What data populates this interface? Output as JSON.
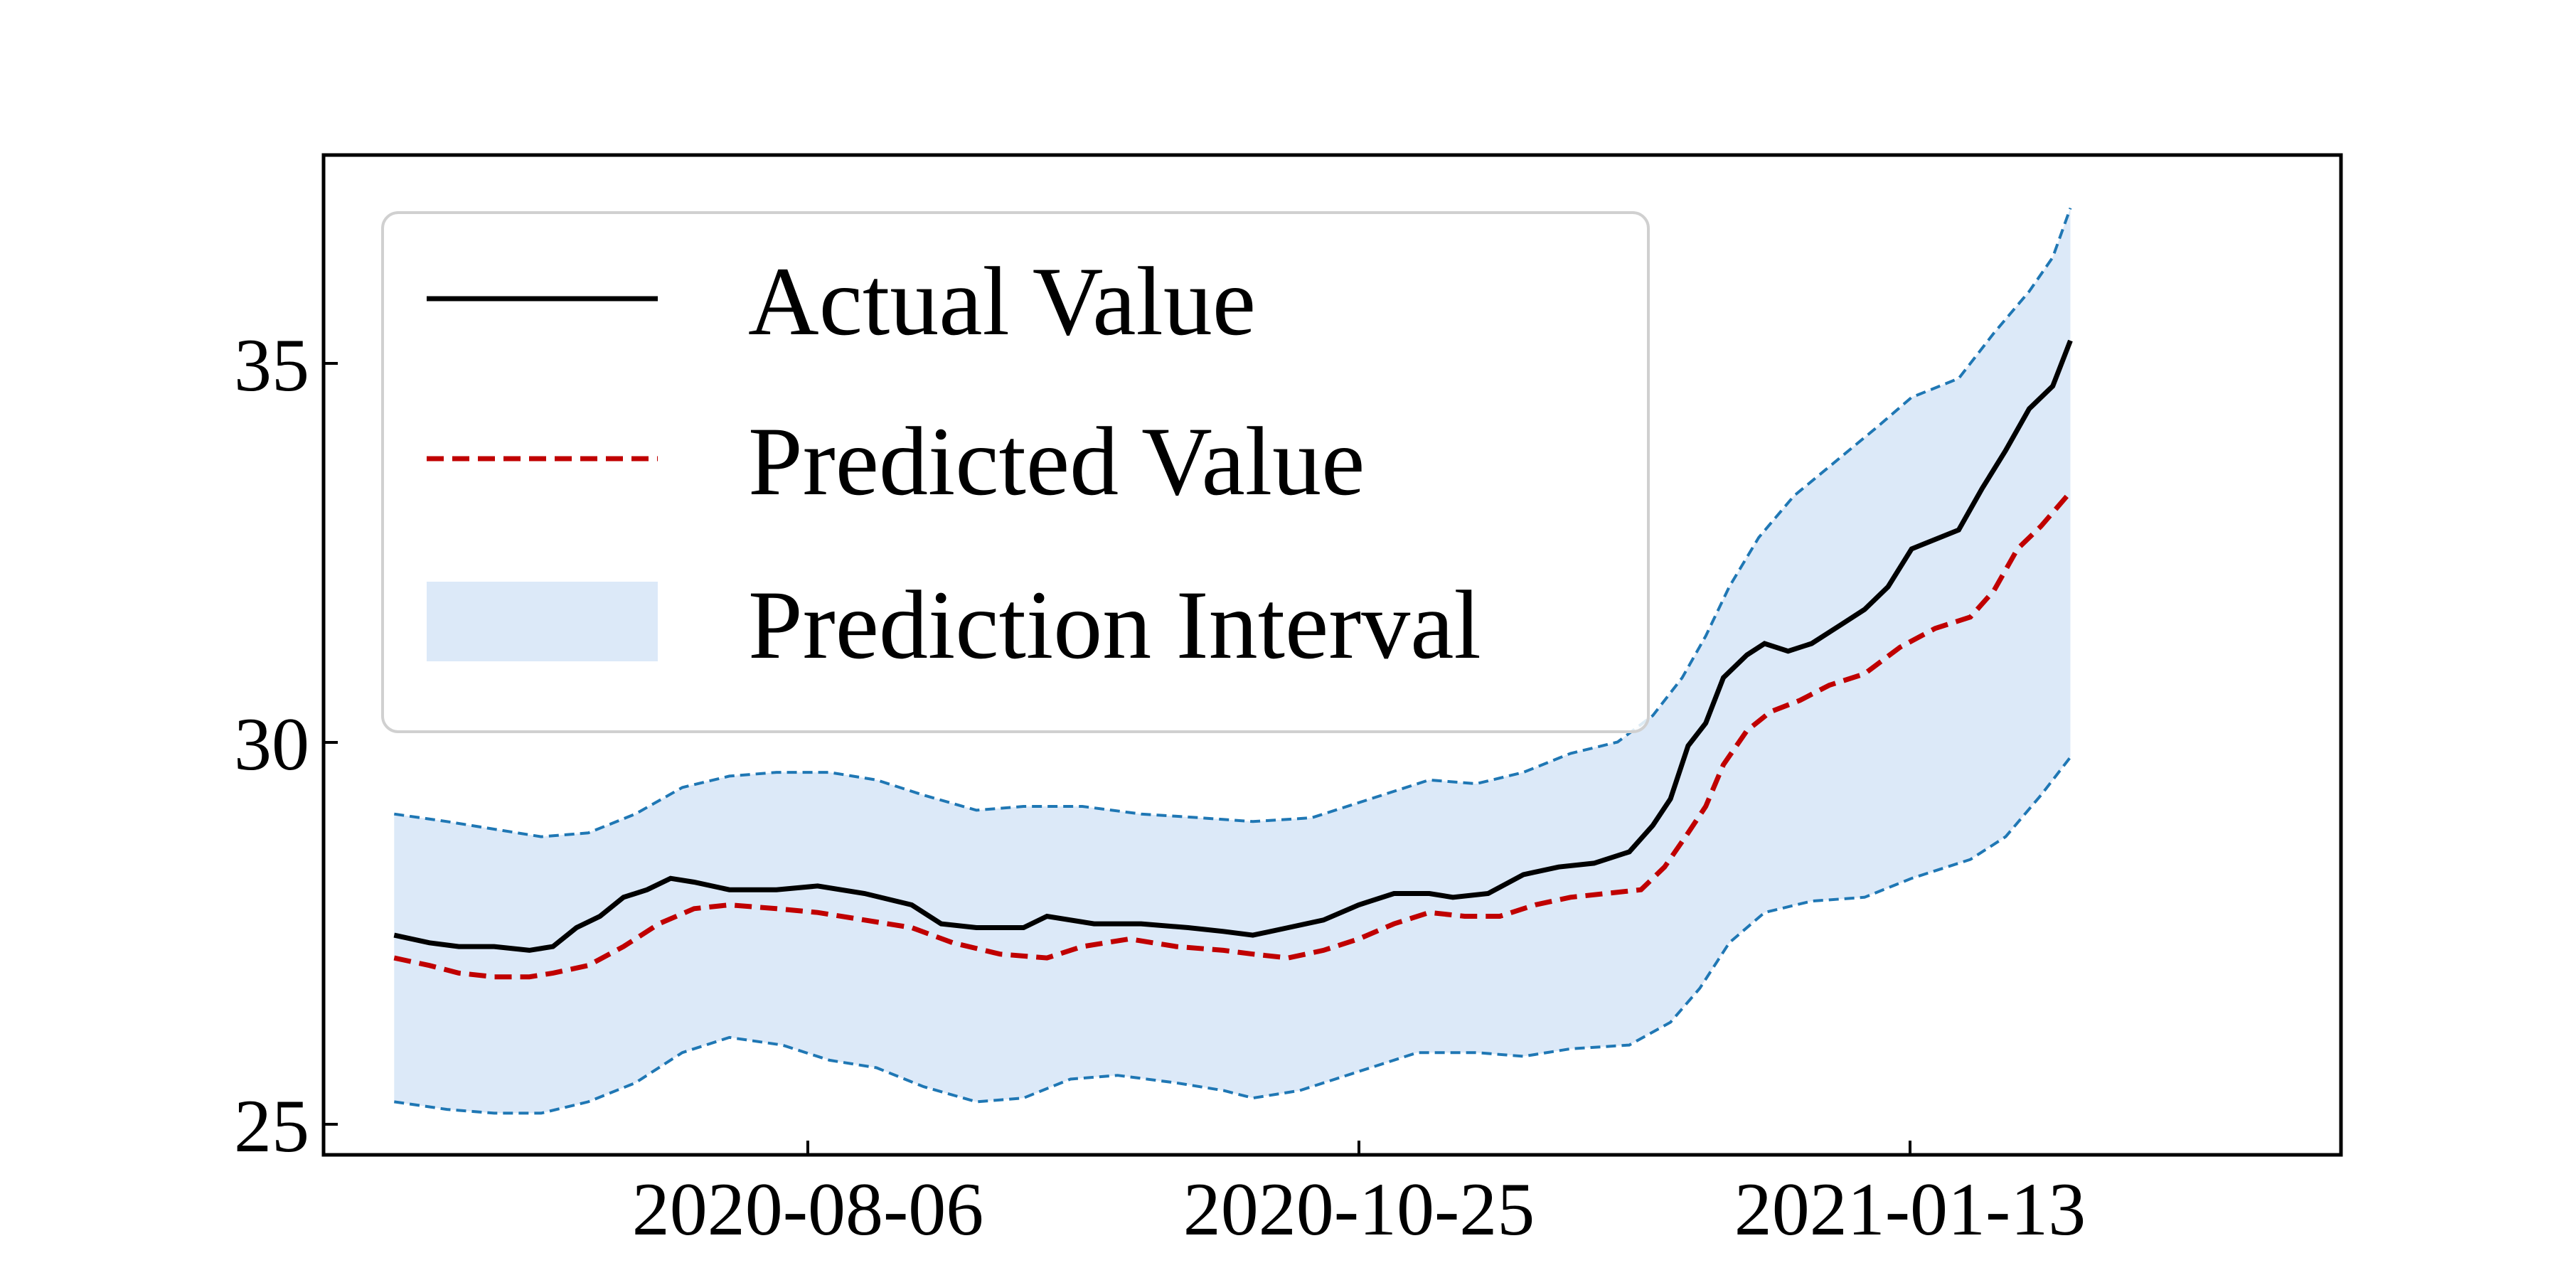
{
  "chart_data": {
    "type": "line",
    "title": "",
    "xlabel": "",
    "ylabel": "",
    "x_tick_labels": [
      "2020-08-06",
      "2020-10-25",
      "2021-01-13"
    ],
    "y_ticks": [
      25,
      30,
      35
    ],
    "xlim": [
      "2020-05-20",
      "2021-04-28"
    ],
    "ylim": [
      24.6,
      37.8
    ],
    "grid": false,
    "legend_position": "top-left",
    "series": [
      {
        "name": "Actual Value",
        "style": "solid",
        "color": "#000000",
        "points": [
          [
            "2020-06-01",
            27.5
          ],
          [
            "2020-06-07",
            27.4
          ],
          [
            "2020-06-12",
            27.35
          ],
          [
            "2020-06-18",
            27.35
          ],
          [
            "2020-06-24",
            27.3
          ],
          [
            "2020-06-28",
            27.35
          ],
          [
            "2020-07-02",
            27.6
          ],
          [
            "2020-07-06",
            27.75
          ],
          [
            "2020-07-10",
            28.0
          ],
          [
            "2020-07-14",
            28.1
          ],
          [
            "2020-07-18",
            28.25
          ],
          [
            "2020-07-22",
            28.2
          ],
          [
            "2020-07-28",
            28.1
          ],
          [
            "2020-08-05",
            28.1
          ],
          [
            "2020-08-12",
            28.15
          ],
          [
            "2020-08-20",
            28.05
          ],
          [
            "2020-08-28",
            27.9
          ],
          [
            "2020-09-02",
            27.65
          ],
          [
            "2020-09-08",
            27.6
          ],
          [
            "2020-09-16",
            27.6
          ],
          [
            "2020-09-20",
            27.75
          ],
          [
            "2020-09-28",
            27.65
          ],
          [
            "2020-10-06",
            27.65
          ],
          [
            "2020-10-14",
            27.6
          ],
          [
            "2020-10-20",
            27.55
          ],
          [
            "2020-10-25",
            27.5
          ],
          [
            "2020-10-31",
            27.6
          ],
          [
            "2020-11-06",
            27.7
          ],
          [
            "2020-11-12",
            27.9
          ],
          [
            "2020-11-18",
            28.05
          ],
          [
            "2020-11-24",
            28.05
          ],
          [
            "2020-11-28",
            28.0
          ],
          [
            "2020-12-04",
            28.05
          ],
          [
            "2020-12-10",
            28.3
          ],
          [
            "2020-12-16",
            28.4
          ],
          [
            "2020-12-22",
            28.45
          ],
          [
            "2020-12-28",
            28.6
          ],
          [
            "2021-01-01",
            28.95
          ],
          [
            "2021-01-04",
            29.3
          ],
          [
            "2021-01-07",
            30.0
          ],
          [
            "2021-01-10",
            30.3
          ],
          [
            "2021-01-13",
            30.9
          ],
          [
            "2021-01-17",
            31.2
          ],
          [
            "2021-01-20",
            31.35
          ],
          [
            "2021-01-24",
            31.25
          ],
          [
            "2021-01-28",
            31.35
          ],
          [
            "2021-02-02",
            31.6
          ],
          [
            "2021-02-06",
            31.8
          ],
          [
            "2021-02-10",
            32.1
          ],
          [
            "2021-02-14",
            32.6
          ],
          [
            "2021-02-22",
            32.85
          ],
          [
            "2021-02-26",
            33.4
          ],
          [
            "2021-03-02",
            33.9
          ],
          [
            "2021-03-06",
            34.45
          ],
          [
            "2021-03-10",
            34.75
          ],
          [
            "2021-03-13",
            35.35
          ]
        ]
      },
      {
        "name": "Predicted Value",
        "style": "dashed",
        "color": "#c00000",
        "points": [
          [
            "2020-06-01",
            27.2
          ],
          [
            "2020-06-07",
            27.1
          ],
          [
            "2020-06-12",
            27.0
          ],
          [
            "2020-06-18",
            26.95
          ],
          [
            "2020-06-24",
            26.95
          ],
          [
            "2020-06-28",
            27.0
          ],
          [
            "2020-07-04",
            27.1
          ],
          [
            "2020-07-10",
            27.35
          ],
          [
            "2020-07-16",
            27.65
          ],
          [
            "2020-07-22",
            27.85
          ],
          [
            "2020-07-28",
            27.9
          ],
          [
            "2020-08-05",
            27.85
          ],
          [
            "2020-08-12",
            27.8
          ],
          [
            "2020-08-20",
            27.7
          ],
          [
            "2020-08-28",
            27.6
          ],
          [
            "2020-09-04",
            27.4
          ],
          [
            "2020-09-12",
            27.25
          ],
          [
            "2020-09-20",
            27.2
          ],
          [
            "2020-09-26",
            27.35
          ],
          [
            "2020-10-04",
            27.45
          ],
          [
            "2020-10-12",
            27.35
          ],
          [
            "2020-10-20",
            27.3
          ],
          [
            "2020-10-25",
            27.25
          ],
          [
            "2020-10-31",
            27.2
          ],
          [
            "2020-11-06",
            27.3
          ],
          [
            "2020-11-12",
            27.45
          ],
          [
            "2020-11-18",
            27.65
          ],
          [
            "2020-11-24",
            27.8
          ],
          [
            "2020-11-30",
            27.75
          ],
          [
            "2020-12-06",
            27.75
          ],
          [
            "2020-12-12",
            27.9
          ],
          [
            "2020-12-18",
            28.0
          ],
          [
            "2020-12-24",
            28.05
          ],
          [
            "2020-12-30",
            28.1
          ],
          [
            "2021-01-03",
            28.4
          ],
          [
            "2021-01-07",
            28.85
          ],
          [
            "2021-01-10",
            29.2
          ],
          [
            "2021-01-13",
            29.75
          ],
          [
            "2021-01-17",
            30.2
          ],
          [
            "2021-01-21",
            30.45
          ],
          [
            "2021-01-26",
            30.6
          ],
          [
            "2021-01-31",
            30.8
          ],
          [
            "2021-02-06",
            30.95
          ],
          [
            "2021-02-12",
            31.3
          ],
          [
            "2021-02-18",
            31.55
          ],
          [
            "2021-02-24",
            31.7
          ],
          [
            "2021-02-28",
            32.05
          ],
          [
            "2021-03-04",
            32.6
          ],
          [
            "2021-03-08",
            32.9
          ],
          [
            "2021-03-13",
            33.35
          ]
        ]
      },
      {
        "name": "Prediction Interval",
        "style": "band",
        "color": "#dce9f8",
        "edge_color": "#1f77b4",
        "upper": [
          [
            "2020-06-01",
            29.1
          ],
          [
            "2020-06-10",
            29.0
          ],
          [
            "2020-06-18",
            28.9
          ],
          [
            "2020-06-26",
            28.8
          ],
          [
            "2020-07-04",
            28.85
          ],
          [
            "2020-07-12",
            29.1
          ],
          [
            "2020-07-20",
            29.45
          ],
          [
            "2020-07-28",
            29.6
          ],
          [
            "2020-08-05",
            29.65
          ],
          [
            "2020-08-14",
            29.65
          ],
          [
            "2020-08-22",
            29.55
          ],
          [
            "2020-08-30",
            29.35
          ],
          [
            "2020-09-08",
            29.15
          ],
          [
            "2020-09-16",
            29.2
          ],
          [
            "2020-09-26",
            29.2
          ],
          [
            "2020-10-06",
            29.1
          ],
          [
            "2020-10-16",
            29.05
          ],
          [
            "2020-10-25",
            29.0
          ],
          [
            "2020-11-04",
            29.05
          ],
          [
            "2020-11-14",
            29.3
          ],
          [
            "2020-11-24",
            29.55
          ],
          [
            "2020-12-02",
            29.5
          ],
          [
            "2020-12-10",
            29.65
          ],
          [
            "2020-12-18",
            29.9
          ],
          [
            "2020-12-26",
            30.05
          ],
          [
            "2021-01-01",
            30.4
          ],
          [
            "2021-01-06",
            30.9
          ],
          [
            "2021-01-10",
            31.45
          ],
          [
            "2021-01-14",
            32.1
          ],
          [
            "2021-01-19",
            32.75
          ],
          [
            "2021-01-25",
            33.3
          ],
          [
            "2021-02-01",
            33.75
          ],
          [
            "2021-02-08",
            34.2
          ],
          [
            "2021-02-14",
            34.6
          ],
          [
            "2021-02-22",
            34.85
          ],
          [
            "2021-02-28",
            35.45
          ],
          [
            "2021-03-06",
            36.0
          ],
          [
            "2021-03-10",
            36.45
          ],
          [
            "2021-03-13",
            37.1
          ]
        ],
        "lower": [
          [
            "2020-06-01",
            25.3
          ],
          [
            "2020-06-10",
            25.2
          ],
          [
            "2020-06-18",
            25.15
          ],
          [
            "2020-06-26",
            25.15
          ],
          [
            "2020-07-04",
            25.3
          ],
          [
            "2020-07-12",
            25.55
          ],
          [
            "2020-07-20",
            25.95
          ],
          [
            "2020-07-28",
            26.15
          ],
          [
            "2020-08-06",
            26.05
          ],
          [
            "2020-08-14",
            25.85
          ],
          [
            "2020-08-22",
            25.75
          ],
          [
            "2020-08-30",
            25.5
          ],
          [
            "2020-09-08",
            25.3
          ],
          [
            "2020-09-16",
            25.35
          ],
          [
            "2020-09-24",
            25.6
          ],
          [
            "2020-10-02",
            25.65
          ],
          [
            "2020-10-12",
            25.55
          ],
          [
            "2020-10-20",
            25.45
          ],
          [
            "2020-10-25",
            25.35
          ],
          [
            "2020-11-02",
            25.45
          ],
          [
            "2020-11-12",
            25.7
          ],
          [
            "2020-11-22",
            25.95
          ],
          [
            "2020-12-02",
            25.95
          ],
          [
            "2020-12-10",
            25.9
          ],
          [
            "2020-12-18",
            26.0
          ],
          [
            "2020-12-28",
            26.05
          ],
          [
            "2021-01-04",
            26.35
          ],
          [
            "2021-01-09",
            26.8
          ],
          [
            "2021-01-14",
            27.4
          ],
          [
            "2021-01-20",
            27.8
          ],
          [
            "2021-01-28",
            27.95
          ],
          [
            "2021-02-06",
            28.0
          ],
          [
            "2021-02-14",
            28.25
          ],
          [
            "2021-02-24",
            28.5
          ],
          [
            "2021-03-02",
            28.8
          ],
          [
            "2021-03-08",
            29.35
          ],
          [
            "2021-03-13",
            29.85
          ]
        ]
      }
    ]
  }
}
